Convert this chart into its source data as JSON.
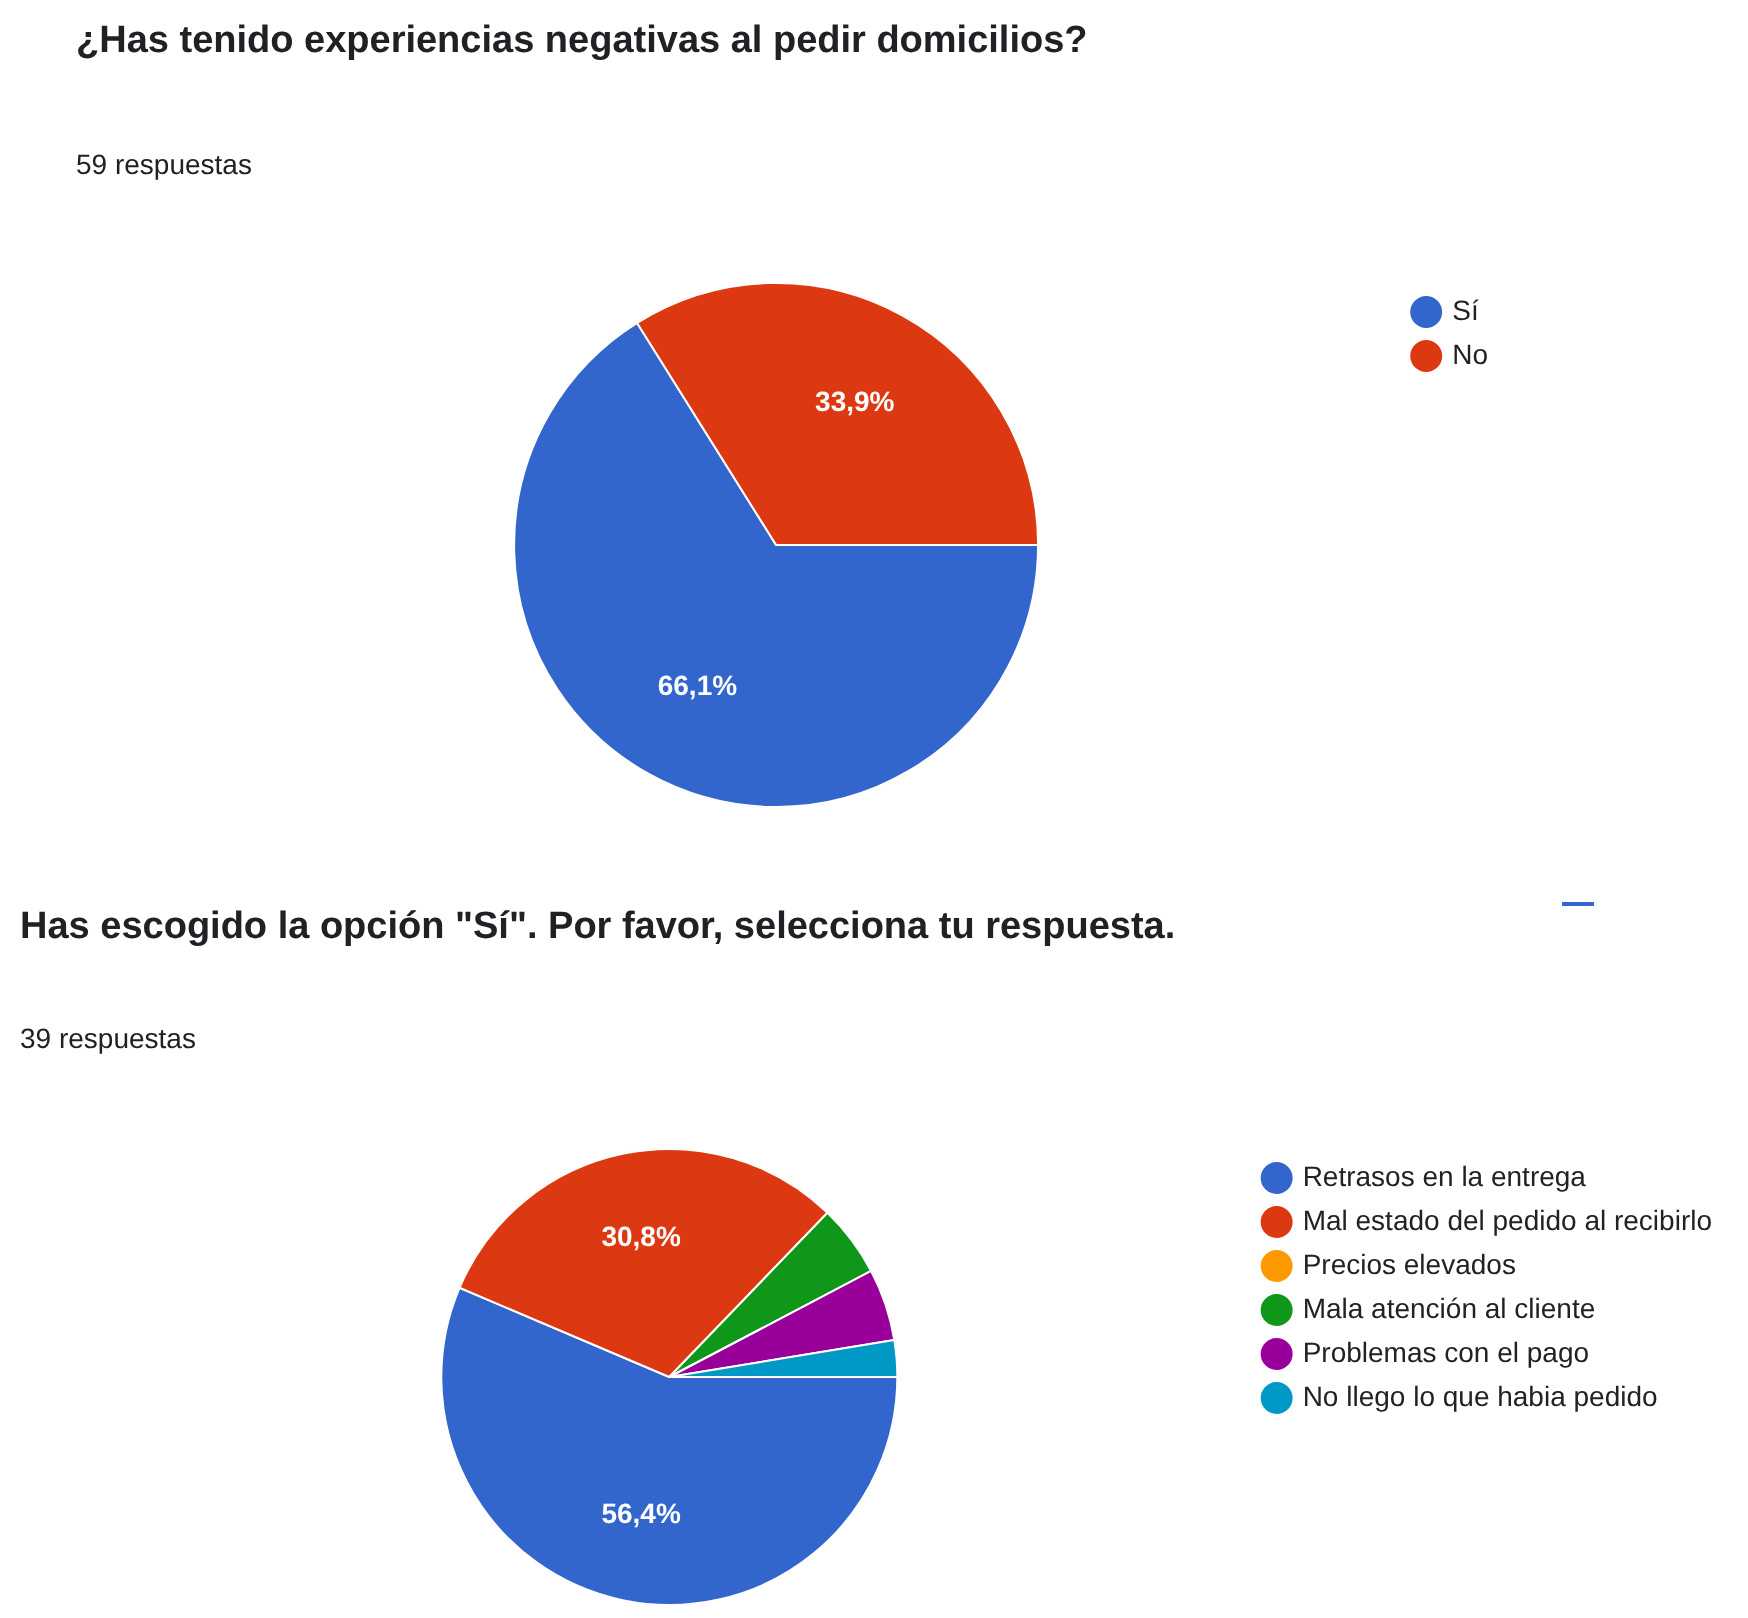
{
  "chart_data": [
    {
      "type": "pie",
      "title": "¿Has tenido experiencias negativas al pedir domicilios?",
      "subtitle": "59 respuestas",
      "categories": [
        "Sí",
        "No"
      ],
      "values": [
        66.1,
        33.9
      ],
      "colors": [
        "#3366cc",
        "#dc3912"
      ],
      "value_labels": [
        "66,1%",
        "33,9%"
      ],
      "legend": "right"
    },
    {
      "type": "pie",
      "title": "Has escogido la opción \"Sí\". Por favor, selecciona tu respuesta.",
      "subtitle": "39 respuestas",
      "categories": [
        "Retrasos en la entrega",
        "Mal estado del pedido al recibirlo",
        "Precios elevados",
        "Mala atención al cliente",
        "Problemas con el pago",
        "No llego lo que habia pedido"
      ],
      "values": [
        56.4,
        30.8,
        0,
        5.1,
        5.1,
        2.6
      ],
      "colors": [
        "#3366cc",
        "#dc3912",
        "#ff9900",
        "#109618",
        "#990099",
        "#0099c6"
      ],
      "value_labels": [
        "56,4%",
        "30,8%",
        null,
        null,
        null,
        null
      ],
      "legend": "right"
    }
  ]
}
